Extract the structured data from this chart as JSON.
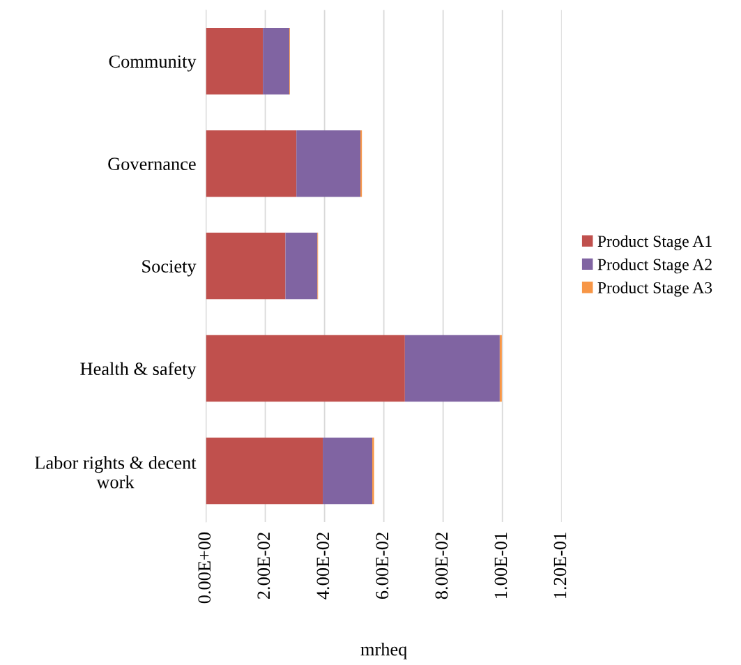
{
  "chart_data": {
    "type": "bar",
    "orientation": "horizontal",
    "stacked": true,
    "xlabel": "mrheq",
    "categories": [
      "Community",
      "Governance",
      "Society",
      "Health & safety",
      "Labor rights & decent work"
    ],
    "series": [
      {
        "name": "Product Stage A1",
        "color": "#c0504d",
        "values": [
          0.0192,
          0.0305,
          0.0268,
          0.0671,
          0.0394
        ]
      },
      {
        "name": "Product Stage A2",
        "color": "#8064a2",
        "values": [
          0.0089,
          0.0216,
          0.0108,
          0.032,
          0.0167
        ]
      },
      {
        "name": "Product Stage A3",
        "color": "#f79646",
        "values": [
          0.0002,
          0.0005,
          0.0002,
          0.0007,
          0.0006
        ]
      }
    ],
    "xlim": [
      0,
      0.12
    ],
    "xticks": [
      {
        "value": 0,
        "label": "0.00E+00"
      },
      {
        "value": 0.02,
        "label": "2.00E-02"
      },
      {
        "value": 0.04,
        "label": "4.00E-02"
      },
      {
        "value": 0.06,
        "label": "6.00E-02"
      },
      {
        "value": 0.08,
        "label": "8.00E-02"
      },
      {
        "value": 0.1,
        "label": "1.00E-01"
      },
      {
        "value": 0.12,
        "label": "1.20E-01"
      }
    ],
    "grid": "x",
    "legend": "right"
  }
}
